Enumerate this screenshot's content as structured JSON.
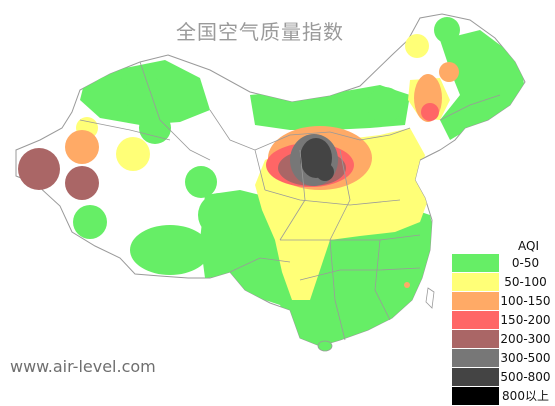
{
  "map": {
    "title": "全国空气质量指数",
    "watermark": "www.air-level.com",
    "legend": {
      "title": "AQI",
      "items": [
        {
          "label": "0-50",
          "color": "#66ee66"
        },
        {
          "label": "50-100",
          "color": "#ffff77"
        },
        {
          "label": "100-150",
          "color": "#ffaa66"
        },
        {
          "label": "150-200",
          "color": "#ff6666"
        },
        {
          "label": "200-300",
          "color": "#aa6666"
        },
        {
          "label": "300-500",
          "color": "#777777"
        },
        {
          "label": "500-800",
          "color": "#444444"
        },
        {
          "label": "800以上",
          "color": "#000000"
        }
      ]
    },
    "colors": {
      "good": "#66ee66",
      "moderate": "#ffff77",
      "sensitive": "#ffaa66",
      "unhealthy": "#ff6666",
      "very_unhealthy": "#aa6666",
      "hazardous": "#777777",
      "severe": "#444444",
      "extreme": "#000000",
      "border": "#9a9a9a"
    }
  }
}
